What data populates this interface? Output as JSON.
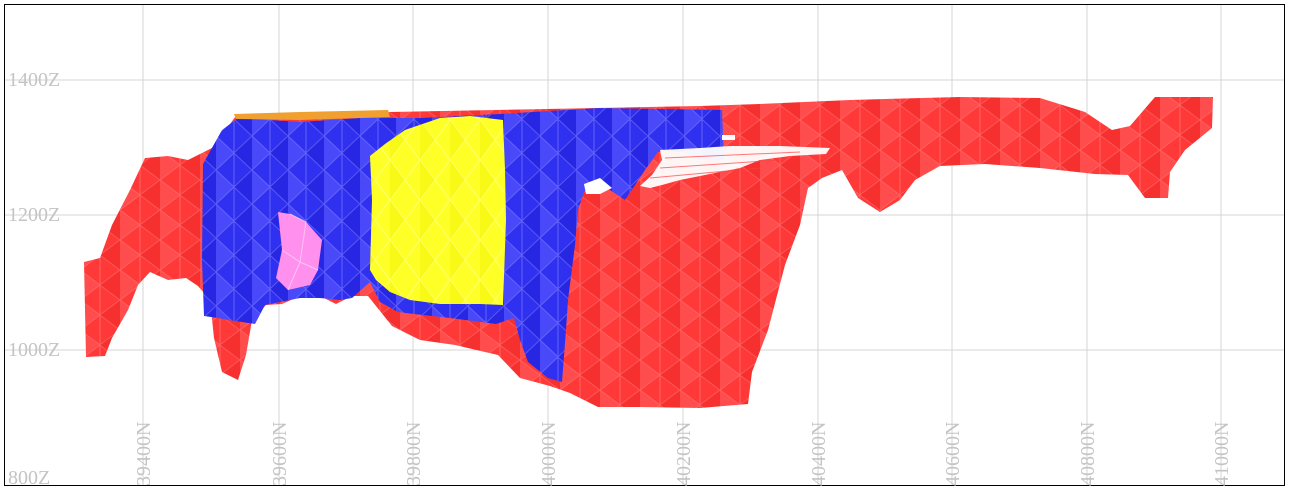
{
  "section": {
    "elevation_labels": [
      "1400Z",
      "1200Z",
      "1000Z",
      "800Z"
    ],
    "northing_labels": [
      "39400N",
      "39600N",
      "39800N",
      "40000N",
      "40200N",
      "40400N",
      "40600N",
      "40800N",
      "41000N"
    ],
    "colors": {
      "red_zone": "#ff3030",
      "blue_zone": "#2a2ae8",
      "yellow_zone": "#ffff20",
      "pink_zone": "#ff9cf0",
      "orange_zone": "#f0a030",
      "grid": "#d4d4d4",
      "label": "#c4c4c4"
    }
  }
}
